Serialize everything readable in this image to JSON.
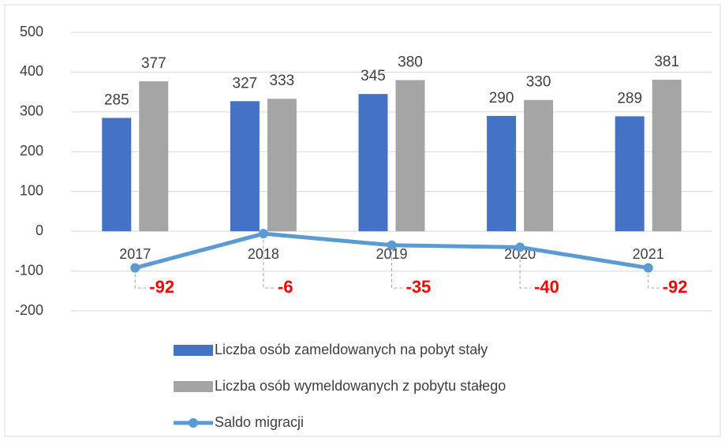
{
  "chart_data": {
    "type": "bar",
    "categories": [
      "2017",
      "2018",
      "2019",
      "2020",
      "2021"
    ],
    "series": [
      {
        "name": "Liczba osób zameldowanych na pobyt stały",
        "color": "#4472c4",
        "values": [
          285,
          327,
          345,
          290,
          289
        ]
      },
      {
        "name": "Liczba osób wymeldowanych z pobytu stałego",
        "color": "#a5a5a5",
        "values": [
          377,
          333,
          380,
          330,
          381
        ]
      },
      {
        "name": "Saldo migracji",
        "color": "#5b9bd5",
        "type": "line",
        "values": [
          -92,
          -6,
          -35,
          -40,
          -92
        ]
      }
    ],
    "ylim": [
      -200,
      500
    ],
    "yticks": [
      -200,
      -100,
      0,
      100,
      200,
      300,
      400,
      500
    ],
    "grid": true,
    "legend": "bottom"
  }
}
